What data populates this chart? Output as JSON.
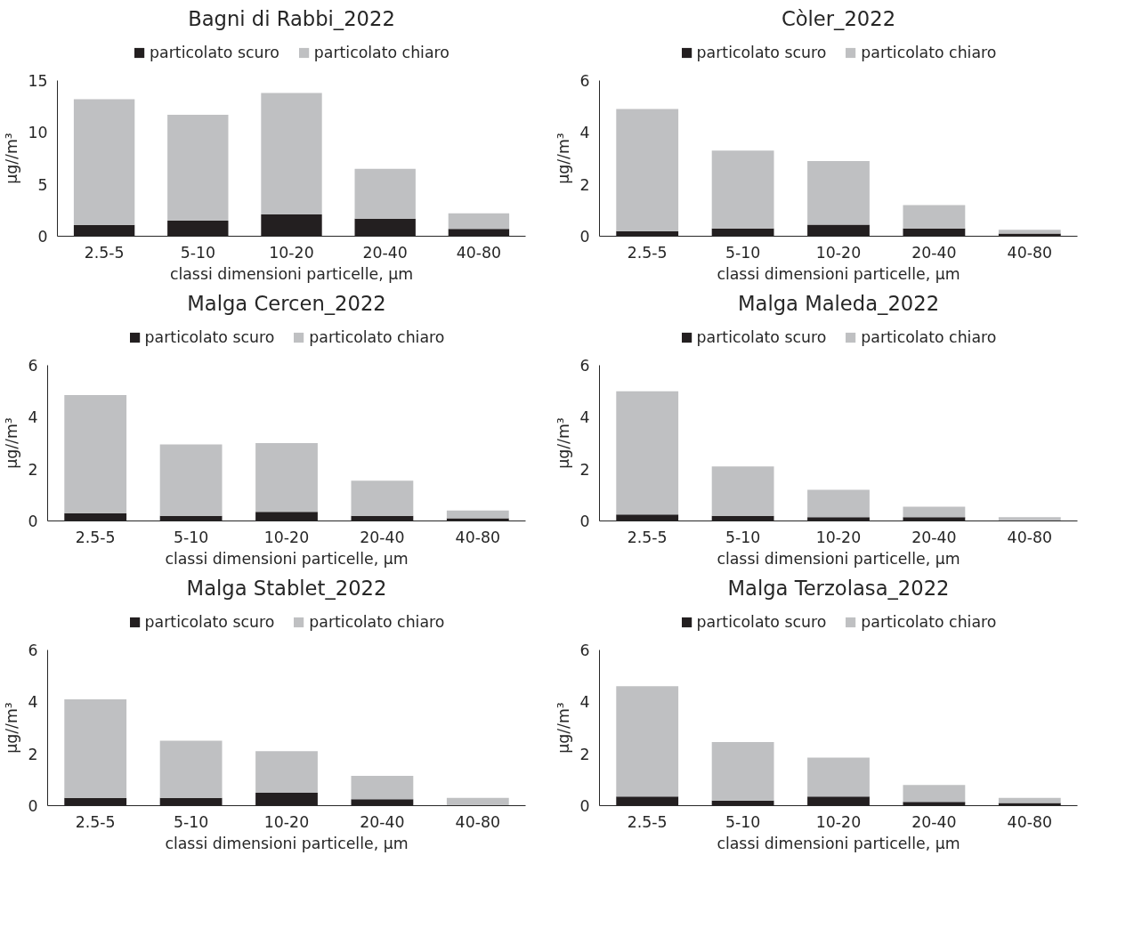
{
  "chart_data": [
    {
      "type": "bar",
      "stacked": true,
      "title": "Bagni di Rabbi_2022",
      "xlabel": "classi dimensioni particelle, μm",
      "ylabel": "μg//m³",
      "categories": [
        "2.5-5",
        "5-10",
        "10-20",
        "20-40",
        "40-80"
      ],
      "ylim": [
        0,
        15
      ],
      "yticks": [
        0,
        5,
        10,
        15
      ],
      "legend": "top",
      "grid": false,
      "series": [
        {
          "name": "particolato scuro",
          "color": "#231f20",
          "values": [
            1.1,
            1.5,
            2.1,
            1.7,
            0.7
          ]
        },
        {
          "name": "particolato chiaro",
          "color": "#bfc0c2",
          "values": [
            12.1,
            10.2,
            11.7,
            4.8,
            1.5
          ]
        }
      ]
    },
    {
      "type": "bar",
      "stacked": true,
      "title": "Còler_2022",
      "xlabel": "classi dimensioni particelle, μm",
      "ylabel": "μg//m³",
      "categories": [
        "2.5-5",
        "5-10",
        "10-20",
        "20-40",
        "40-80"
      ],
      "ylim": [
        0,
        6
      ],
      "yticks": [
        0,
        2,
        4,
        6
      ],
      "legend": "top",
      "grid": false,
      "series": [
        {
          "name": "particolato scuro",
          "color": "#231f20",
          "values": [
            0.2,
            0.3,
            0.45,
            0.3,
            0.1
          ]
        },
        {
          "name": "particolato chiaro",
          "color": "#bfc0c2",
          "values": [
            4.7,
            3.0,
            2.45,
            0.9,
            0.15
          ]
        }
      ]
    },
    {
      "type": "bar",
      "stacked": true,
      "title": "Malga Cercen_2022",
      "xlabel": "classi dimensioni particelle, μm",
      "ylabel": "μg//m³",
      "categories": [
        "2.5-5",
        "5-10",
        "10-20",
        "20-40",
        "40-80"
      ],
      "ylim": [
        0,
        6
      ],
      "yticks": [
        0,
        2,
        4,
        6
      ],
      "legend": "top",
      "grid": false,
      "series": [
        {
          "name": "particolato scuro",
          "color": "#231f20",
          "values": [
            0.3,
            0.2,
            0.35,
            0.2,
            0.1
          ]
        },
        {
          "name": "particolato chiaro",
          "color": "#bfc0c2",
          "values": [
            4.55,
            2.75,
            2.65,
            1.35,
            0.3
          ]
        }
      ]
    },
    {
      "type": "bar",
      "stacked": true,
      "title": "Malga Maleda_2022",
      "xlabel": "classi dimensioni particelle, μm",
      "ylabel": "μg//m³",
      "categories": [
        "2.5-5",
        "5-10",
        "10-20",
        "20-40",
        "40-80"
      ],
      "ylim": [
        0,
        6
      ],
      "yticks": [
        0,
        2,
        4,
        6
      ],
      "legend": "top",
      "grid": false,
      "series": [
        {
          "name": "particolato scuro",
          "color": "#231f20",
          "values": [
            0.25,
            0.2,
            0.15,
            0.15,
            0.02
          ]
        },
        {
          "name": "particolato chiaro",
          "color": "#bfc0c2",
          "values": [
            4.75,
            1.9,
            1.05,
            0.4,
            0.13
          ]
        }
      ]
    },
    {
      "type": "bar",
      "stacked": true,
      "title": "Malga Stablet_2022",
      "xlabel": "classi dimensioni particelle, μm",
      "ylabel": "μg//m³",
      "categories": [
        "2.5-5",
        "5-10",
        "10-20",
        "20-40",
        "40-80"
      ],
      "ylim": [
        0,
        6
      ],
      "yticks": [
        0,
        2,
        4,
        6
      ],
      "legend": "top",
      "grid": false,
      "series": [
        {
          "name": "particolato scuro",
          "color": "#231f20",
          "values": [
            0.3,
            0.3,
            0.5,
            0.25,
            0.02
          ]
        },
        {
          "name": "particolato chiaro",
          "color": "#bfc0c2",
          "values": [
            3.8,
            2.2,
            1.6,
            0.9,
            0.28
          ]
        }
      ]
    },
    {
      "type": "bar",
      "stacked": true,
      "title": "Malga Terzolasa_2022",
      "xlabel": "classi dimensioni particelle, μm",
      "ylabel": "μg//m³",
      "categories": [
        "2.5-5",
        "5-10",
        "10-20",
        "20-40",
        "40-80"
      ],
      "ylim": [
        0,
        6
      ],
      "yticks": [
        0,
        2,
        4,
        6
      ],
      "legend": "top",
      "grid": false,
      "series": [
        {
          "name": "particolato scuro",
          "color": "#231f20",
          "values": [
            0.35,
            0.2,
            0.35,
            0.15,
            0.1
          ]
        },
        {
          "name": "particolato chiaro",
          "color": "#bfc0c2",
          "values": [
            4.25,
            2.25,
            1.5,
            0.65,
            0.2
          ]
        }
      ]
    }
  ]
}
